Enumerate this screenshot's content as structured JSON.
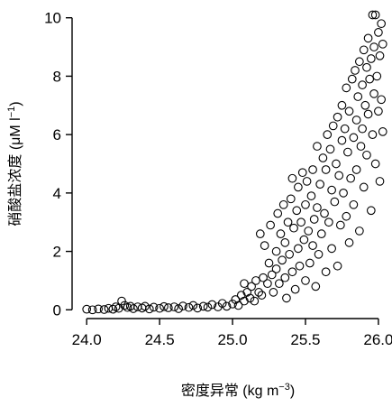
{
  "chart_data": {
    "type": "scatter",
    "title": "",
    "xlabel": "密度异常 (kg m",
    "xlabel_sup": "−3",
    "xlabel_close": ")",
    "ylabel": "硝酸盐浓度 (μM l",
    "ylabel_sup": "−1",
    "ylabel_close": ")",
    "xlim": [
      23.9,
      26.05
    ],
    "ylim": [
      -0.3,
      10.3
    ],
    "xticks": [
      24.0,
      24.5,
      25.0,
      25.5,
      26.0
    ],
    "xtick_labels": [
      "24.0",
      "24.5",
      "25.0",
      "25.5",
      "26.0"
    ],
    "yticks": [
      0,
      2,
      4,
      6,
      8,
      10
    ],
    "ytick_labels": [
      "0",
      "2",
      "4",
      "6",
      "8",
      "10"
    ],
    "frame": "open-left-bottom",
    "grid": false,
    "legend": "none",
    "marker": "open-circle",
    "marker_color": "#000000",
    "series": [
      {
        "points": [
          [
            24.0,
            0.02
          ],
          [
            24.04,
            0.0
          ],
          [
            24.08,
            0.03
          ],
          [
            24.12,
            0.01
          ],
          [
            24.15,
            0.05
          ],
          [
            24.18,
            0.02
          ],
          [
            24.2,
            0.1
          ],
          [
            24.22,
            0.05
          ],
          [
            24.24,
            0.3
          ],
          [
            24.26,
            0.15
          ],
          [
            24.28,
            0.08
          ],
          [
            24.3,
            0.12
          ],
          [
            24.32,
            0.04
          ],
          [
            24.35,
            0.1
          ],
          [
            24.38,
            0.06
          ],
          [
            24.4,
            0.12
          ],
          [
            24.43,
            0.03
          ],
          [
            24.46,
            0.09
          ],
          [
            24.5,
            0.05
          ],
          [
            24.53,
            0.11
          ],
          [
            24.56,
            0.07
          ],
          [
            24.6,
            0.1
          ],
          [
            24.63,
            0.04
          ],
          [
            24.66,
            0.13
          ],
          [
            24.7,
            0.08
          ],
          [
            24.73,
            0.15
          ],
          [
            24.76,
            0.06
          ],
          [
            24.8,
            0.12
          ],
          [
            24.83,
            0.09
          ],
          [
            24.86,
            0.18
          ],
          [
            24.9,
            0.1
          ],
          [
            24.93,
            0.22
          ],
          [
            24.96,
            0.12
          ],
          [
            25.0,
            0.2
          ],
          [
            25.02,
            0.35
          ],
          [
            25.04,
            0.15
          ],
          [
            25.06,
            0.5
          ],
          [
            25.08,
            0.3
          ],
          [
            25.08,
            0.9
          ],
          [
            25.1,
            0.6
          ],
          [
            25.12,
            0.4
          ],
          [
            25.13,
            0.8
          ],
          [
            25.15,
            0.3
          ],
          [
            25.16,
            1.0
          ],
          [
            25.18,
            0.6
          ],
          [
            25.19,
            2.6
          ],
          [
            25.2,
            0.5
          ],
          [
            25.21,
            1.1
          ],
          [
            25.22,
            2.2
          ],
          [
            25.24,
            0.9
          ],
          [
            25.25,
            1.6
          ],
          [
            25.26,
            2.9
          ],
          [
            25.27,
            1.2
          ],
          [
            25.28,
            0.6
          ],
          [
            25.3,
            2.0
          ],
          [
            25.3,
            1.4
          ],
          [
            25.31,
            3.3
          ],
          [
            25.32,
            0.9
          ],
          [
            25.33,
            2.6
          ],
          [
            25.34,
            1.7
          ],
          [
            25.35,
            3.6
          ],
          [
            25.36,
            1.1
          ],
          [
            25.36,
            2.3
          ],
          [
            25.37,
            0.4
          ],
          [
            25.38,
            3.0
          ],
          [
            25.39,
            1.9
          ],
          [
            25.4,
            3.8
          ],
          [
            25.41,
            1.3
          ],
          [
            25.41,
            4.5
          ],
          [
            25.42,
            2.8
          ],
          [
            25.43,
            0.7
          ],
          [
            25.44,
            3.4
          ],
          [
            25.45,
            2.1
          ],
          [
            25.45,
            4.2
          ],
          [
            25.46,
            1.5
          ],
          [
            25.47,
            3.0
          ],
          [
            25.48,
            4.7
          ],
          [
            25.49,
            2.4
          ],
          [
            25.5,
            1.0
          ],
          [
            25.5,
            3.6
          ],
          [
            25.51,
            4.4
          ],
          [
            25.52,
            2.7
          ],
          [
            25.53,
            1.6
          ],
          [
            25.54,
            3.9
          ],
          [
            25.55,
            2.2
          ],
          [
            25.55,
            4.8
          ],
          [
            25.56,
            3.1
          ],
          [
            25.57,
            0.8
          ],
          [
            25.58,
            5.6
          ],
          [
            25.58,
            3.5
          ],
          [
            25.59,
            1.9
          ],
          [
            25.6,
            4.3
          ],
          [
            25.61,
            2.6
          ],
          [
            25.62,
            5.2
          ],
          [
            25.63,
            3.3
          ],
          [
            25.64,
            1.3
          ],
          [
            25.64,
            4.8
          ],
          [
            25.65,
            6.0
          ],
          [
            25.66,
            3.0
          ],
          [
            25.67,
            5.5
          ],
          [
            25.68,
            2.1
          ],
          [
            25.68,
            4.1
          ],
          [
            25.69,
            6.3
          ],
          [
            25.7,
            3.7
          ],
          [
            25.71,
            5.0
          ],
          [
            25.72,
            1.5
          ],
          [
            25.72,
            6.6
          ],
          [
            25.73,
            4.6
          ],
          [
            25.74,
            2.9
          ],
          [
            25.75,
            5.8
          ],
          [
            25.75,
            7.0
          ],
          [
            25.76,
            4.0
          ],
          [
            25.77,
            6.2
          ],
          [
            25.78,
            3.2
          ],
          [
            25.78,
            7.6
          ],
          [
            25.79,
            5.4
          ],
          [
            25.8,
            2.3
          ],
          [
            25.8,
            6.8
          ],
          [
            25.81,
            4.5
          ],
          [
            25.82,
            7.9
          ],
          [
            25.83,
            5.9
          ],
          [
            25.83,
            3.6
          ],
          [
            25.84,
            8.2
          ],
          [
            25.85,
            6.5
          ],
          [
            25.85,
            4.8
          ],
          [
            25.86,
            7.3
          ],
          [
            25.87,
            2.7
          ],
          [
            25.87,
            8.5
          ],
          [
            25.88,
            5.6
          ],
          [
            25.89,
            7.7
          ],
          [
            25.89,
            6.2
          ],
          [
            25.9,
            8.9
          ],
          [
            25.9,
            4.2
          ],
          [
            25.91,
            7.0
          ],
          [
            25.92,
            8.3
          ],
          [
            25.92,
            5.3
          ],
          [
            25.93,
            9.3
          ],
          [
            25.93,
            6.7
          ],
          [
            25.94,
            7.9
          ],
          [
            25.95,
            3.4
          ],
          [
            25.95,
            8.6
          ],
          [
            25.96,
            10.1
          ],
          [
            25.96,
            6.0
          ],
          [
            25.97,
            9.0
          ],
          [
            25.97,
            7.4
          ],
          [
            25.98,
            10.1
          ],
          [
            25.98,
            5.0
          ],
          [
            25.99,
            8.0
          ],
          [
            26.0,
            9.5
          ],
          [
            26.0,
            6.8
          ],
          [
            26.01,
            8.7
          ],
          [
            26.01,
            4.4
          ],
          [
            26.02,
            9.8
          ],
          [
            26.02,
            7.2
          ],
          [
            26.03,
            6.1
          ],
          [
            26.03,
            9.1
          ]
        ]
      }
    ]
  }
}
